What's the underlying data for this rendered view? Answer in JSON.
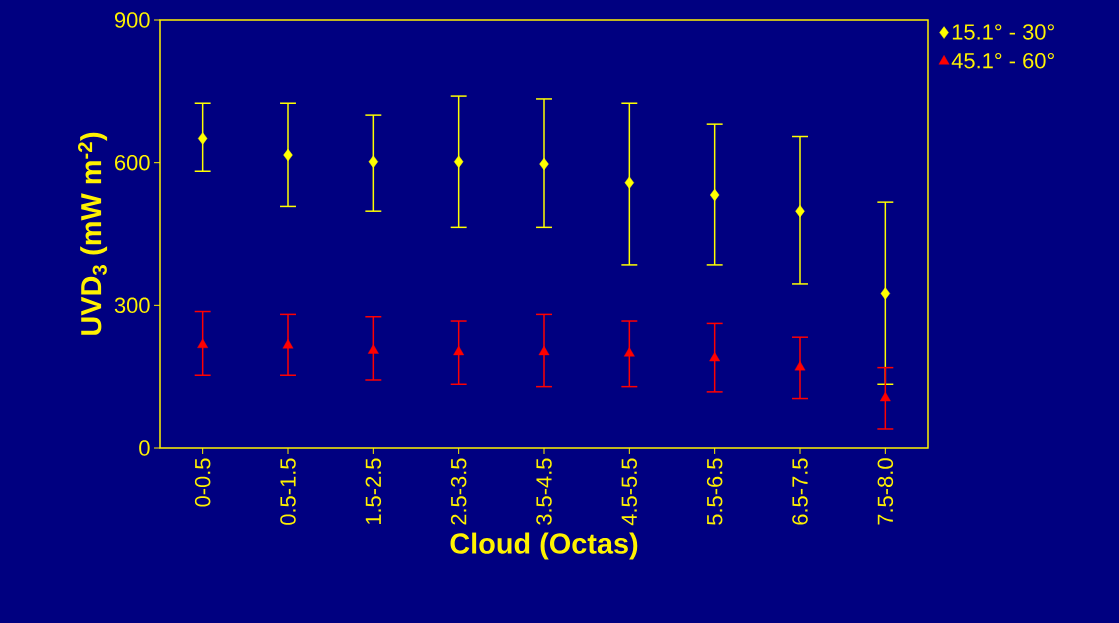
{
  "chart_data": {
    "type": "scatter",
    "xlabel": "Cloud (Octas)",
    "ylabel": "UVD$_{3}$ (mW m$^{-2}$)",
    "categories": [
      "0-0.5",
      "0.5-1.5",
      "1.5-2.5",
      "2.5-3.5",
      "3.5-4.5",
      "4.5-5.5",
      "5.5-6.5",
      "6.5-7.5",
      "7.5-8.0"
    ],
    "series": [
      {
        "name": "15.1° - 30°",
        "color": "#ffff00",
        "marker": "diamond",
        "values": [
          651,
          616,
          602,
          602,
          597,
          558,
          532,
          498,
          325
        ],
        "errors": [
          [
            582,
            725
          ],
          [
            508,
            725
          ],
          [
            498,
            700
          ],
          [
            464,
            740
          ],
          [
            464,
            734
          ],
          [
            385,
            725
          ],
          [
            385,
            681
          ],
          [
            345,
            655
          ],
          [
            134,
            517
          ]
        ]
      },
      {
        "name": "45.1° - 60°",
        "color": "#ff0000",
        "marker": "triangle",
        "values": [
          217,
          216,
          205,
          202,
          202,
          199,
          189,
          170,
          105
        ],
        "errors": [
          [
            153,
            287
          ],
          [
            153,
            281
          ],
          [
            143,
            276
          ],
          [
            134,
            267
          ],
          [
            129,
            281
          ],
          [
            129,
            267
          ],
          [
            118,
            262
          ],
          [
            104,
            233
          ],
          [
            40,
            169
          ]
        ]
      }
    ],
    "ylim": [
      0,
      900
    ],
    "yticks": [
      0,
      300,
      600,
      900
    ],
    "legend": "top right"
  }
}
